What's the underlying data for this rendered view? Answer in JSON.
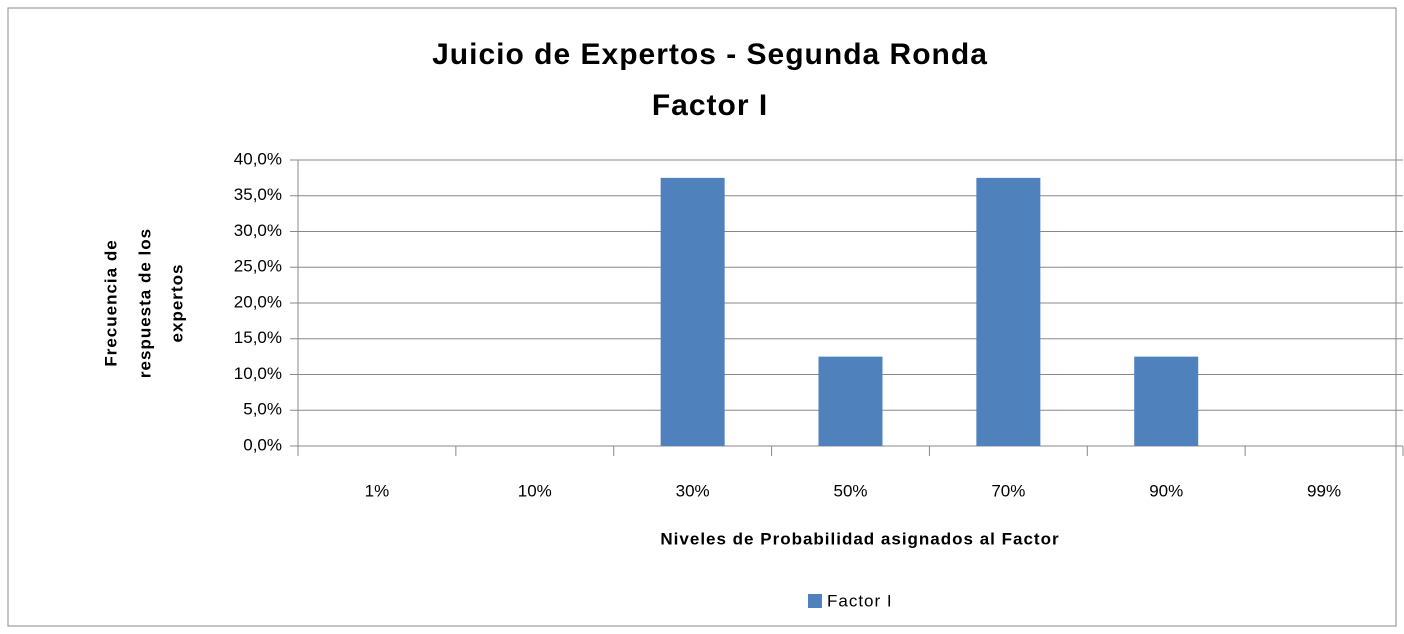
{
  "chart_data": {
    "type": "bar",
    "title": [
      "Juicio de Expertos - Segunda Ronda",
      "Factor I"
    ],
    "x_label": "Niveles de Probabilidad asignados al Factor",
    "y_label": [
      "Frecuencia de",
      "respuesta de los",
      "expertos"
    ],
    "categories": [
      "1%",
      "10%",
      "30%",
      "50%",
      "70%",
      "90%",
      "99%"
    ],
    "series": [
      {
        "name": "Factor I",
        "color": "#4f81bd",
        "values": [
          0,
          0,
          37.5,
          12.5,
          37.5,
          12.5,
          0
        ]
      }
    ],
    "ylim": [
      0,
      40
    ],
    "yticks": [
      {
        "value": 0,
        "label": "0,0%"
      },
      {
        "value": 5,
        "label": "5,0%"
      },
      {
        "value": 10,
        "label": "10,0%"
      },
      {
        "value": 15,
        "label": "15,0%"
      },
      {
        "value": 20,
        "label": "20,0%"
      },
      {
        "value": 25,
        "label": "25,0%"
      },
      {
        "value": 30,
        "label": "30,0%"
      },
      {
        "value": 35,
        "label": "35,0%"
      },
      {
        "value": 40,
        "label": "40,0%"
      }
    ],
    "grid": true,
    "legend": "bottom"
  }
}
